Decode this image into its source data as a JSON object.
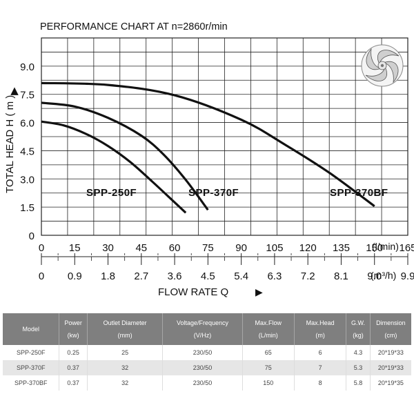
{
  "chart_data": {
    "type": "line",
    "title": "PERFORMANCE  CHART  AT  n=2860r/min",
    "ylabel": "TOTAL HEAD  H ( m )",
    "ylabel_arrow": "▲",
    "xlabel": "FLOW  RATE  Q",
    "xlabel_arrow": "▶",
    "x_unit_top": "(l/min)",
    "x_unit_bottom": "(m³/h)",
    "xlim": [
      0,
      165
    ],
    "ylim": [
      0,
      10.5
    ],
    "x_ticks_lmin": [
      "0",
      "15",
      "30",
      "45",
      "60",
      "75",
      "90",
      "105",
      "120",
      "135",
      "150",
      "165"
    ],
    "x_ticks_m3h": [
      "0",
      "0.9",
      "1.8",
      "2.7",
      "3.6",
      "4.5",
      "5.4",
      "6.3",
      "7.2",
      "8.1",
      "9.0",
      "9.9"
    ],
    "y_ticks": [
      "0",
      "1.5",
      "3.0",
      "4.5",
      "6.0",
      "7.5",
      "9.0"
    ],
    "grid": true,
    "series": [
      {
        "name": "SPP-250F",
        "x": [
          0,
          10,
          20,
          30,
          40,
          50,
          60,
          65
        ],
        "y": [
          6.05,
          5.85,
          5.4,
          4.75,
          3.9,
          2.85,
          1.75,
          1.2
        ]
      },
      {
        "name": "SPP-370F",
        "x": [
          0,
          15,
          30,
          45,
          55,
          65,
          75
        ],
        "y": [
          7.05,
          6.85,
          6.25,
          5.3,
          4.3,
          2.95,
          1.35
        ]
      },
      {
        "name": "SPP-370BF",
        "x": [
          0,
          30,
          60,
          90,
          110,
          130,
          150
        ],
        "y": [
          8.1,
          8.0,
          7.45,
          6.15,
          4.8,
          3.3,
          1.55
        ]
      }
    ]
  },
  "table": {
    "headers": [
      {
        "line1": "Model",
        "line2": ""
      },
      {
        "line1": "Power",
        "line2": "(kw)"
      },
      {
        "line1": "Outlet Diameter",
        "line2": "(mm)"
      },
      {
        "line1": "Voltage/Frequency",
        "line2": "(V/Hz)"
      },
      {
        "line1": "Max.Flow",
        "line2": "(L/min)"
      },
      {
        "line1": "Max.Head",
        "line2": "(m)"
      },
      {
        "line1": "G.W.",
        "line2": "(kg)"
      },
      {
        "line1": "Dimension",
        "line2": "(cm)"
      }
    ],
    "rows": [
      [
        "SPP-250F",
        "0.25",
        "25",
        "230/50",
        "65",
        "6",
        "4.3",
        "20*19*33"
      ],
      [
        "SPP-370F",
        "0.37",
        "32",
        "230/50",
        "75",
        "7",
        "5.3",
        "20*19*33"
      ],
      [
        "SPP-370BF",
        "0.37",
        "32",
        "230/50",
        "150",
        "8",
        "5.8",
        "20*19*35"
      ]
    ]
  }
}
